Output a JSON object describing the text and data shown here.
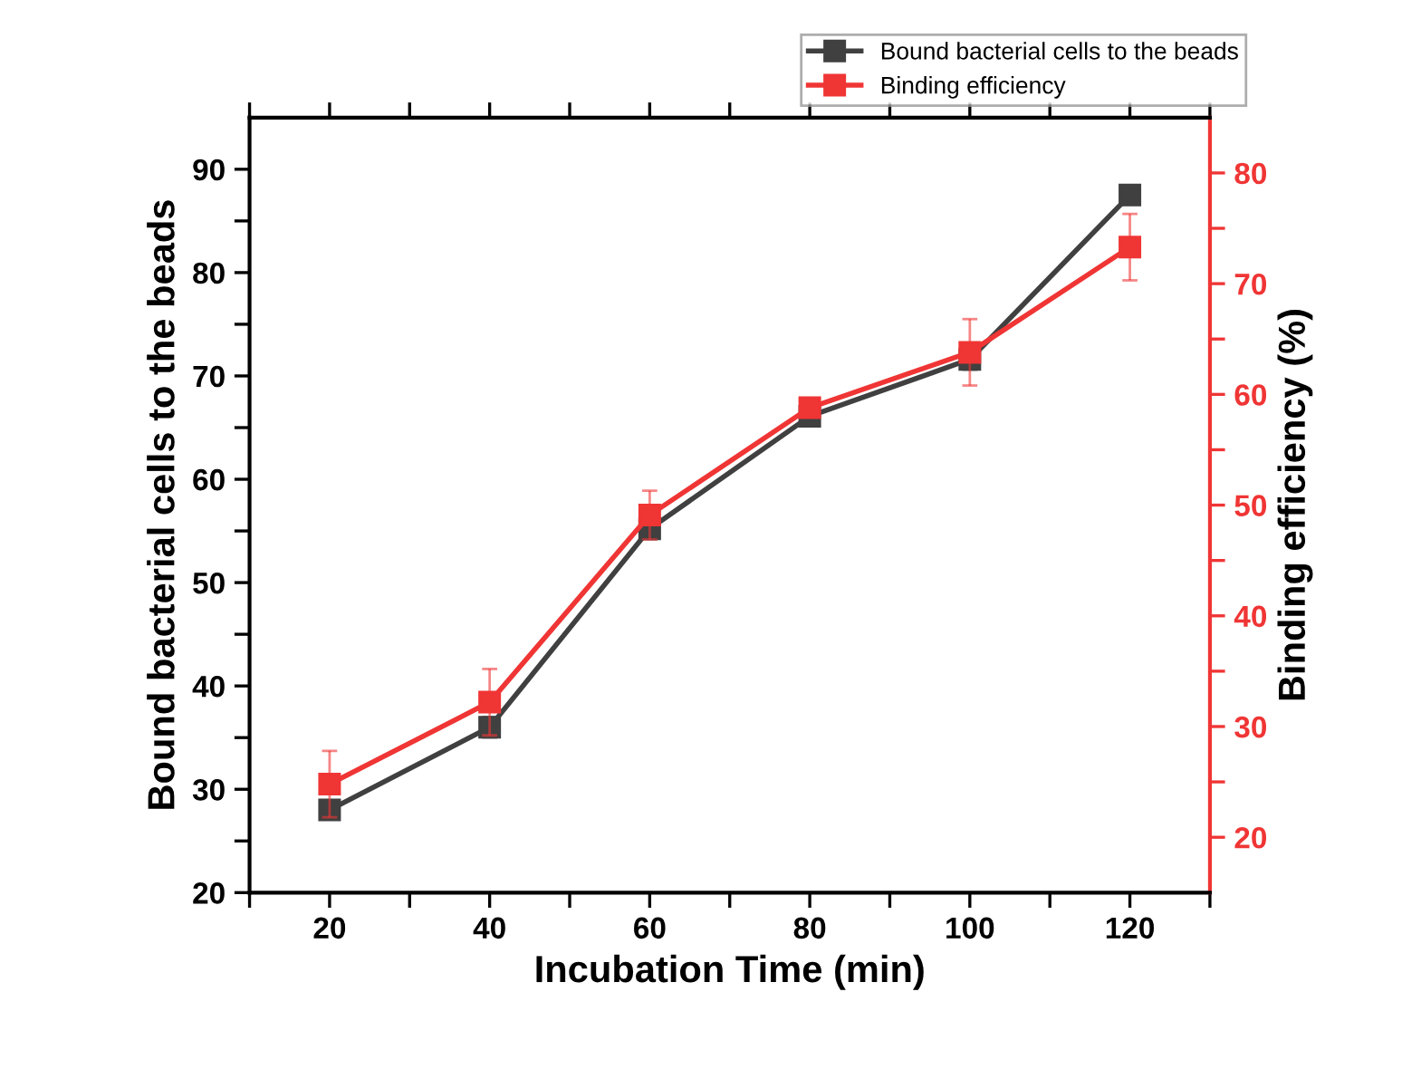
{
  "chart_data": {
    "type": "line",
    "xlabel": "Incubation Time (min)",
    "ylabel": "Bound bacterial cells to the beads",
    "y2label": "Binding efficiency (%)",
    "x": [
      20,
      40,
      60,
      80,
      100,
      120
    ],
    "series": [
      {
        "name": "Bound bacterial cells to the beads",
        "color": "#404040",
        "values": [
          28,
          36,
          55.2,
          66.1,
          71.6,
          87.5
        ],
        "errors": [
          0.6,
          1,
          1,
          0.5,
          1,
          0.5
        ]
      },
      {
        "name": "Binding efficiency",
        "color": "#f03535",
        "axis": "y2",
        "values": [
          24.8,
          32.2,
          49.1,
          58.8,
          63.8,
          73.3
        ],
        "errors": [
          3,
          3,
          2.2,
          0.5,
          3,
          3
        ]
      }
    ],
    "xlim": [
      10,
      130
    ],
    "xticks": [
      {
        "value": 10,
        "label": null
      },
      20,
      {
        "value": 30,
        "label": null
      },
      40,
      {
        "value": 50,
        "label": null
      },
      60,
      {
        "value": 70,
        "label": null
      },
      80,
      {
        "value": 90,
        "label": null
      },
      100,
      {
        "value": 110,
        "label": null
      },
      120,
      {
        "value": 130,
        "label": null
      }
    ],
    "ylim": [
      20,
      95
    ],
    "yticks": [
      20,
      {
        "value": 25,
        "label": null
      },
      30,
      {
        "value": 35,
        "label": null
      },
      40,
      {
        "value": 45,
        "label": null
      },
      50,
      {
        "value": 55,
        "label": null
      },
      60,
      {
        "value": 65,
        "label": null
      },
      70,
      {
        "value": 75,
        "label": null
      },
      80,
      {
        "value": 85,
        "label": null
      },
      90
    ],
    "y2lim": [
      15,
      85
    ],
    "y2ticks": [
      20,
      {
        "value": 25,
        "label": null
      },
      30,
      {
        "value": 35,
        "label": null
      },
      40,
      {
        "value": 45,
        "label": null
      },
      50,
      {
        "value": 55,
        "label": null
      },
      60,
      {
        "value": 65,
        "label": null
      },
      70,
      {
        "value": 75,
        "label": null
      },
      80
    ],
    "marker": "square",
    "line_style": "solid",
    "legend": "top right",
    "grid": false
  }
}
